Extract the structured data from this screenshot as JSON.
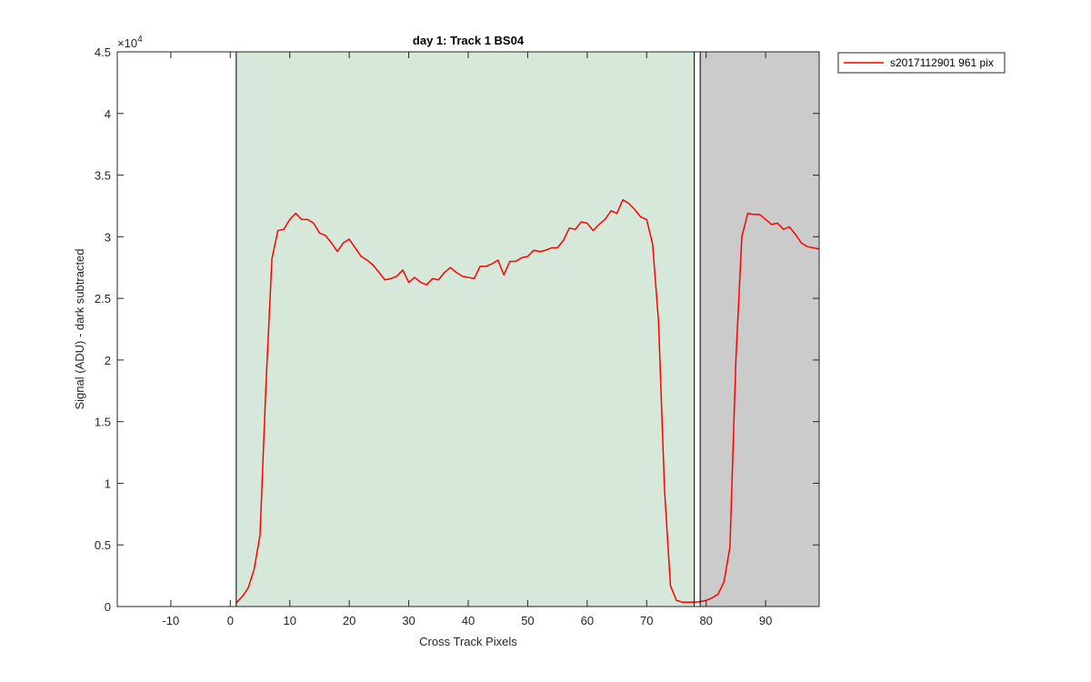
{
  "chart_data": {
    "type": "line",
    "title": "day 1: Track 1  BS04",
    "xlabel": "Cross Track Pixels",
    "ylabel": "Signal (ADU) - dark subtracted",
    "y_exponent_label": "×10",
    "y_exponent_power": "4",
    "xlim": [
      -19,
      99
    ],
    "ylim": [
      0,
      4.5
    ],
    "xticks": [
      -10,
      0,
      10,
      20,
      30,
      40,
      50,
      60,
      70,
      80,
      90
    ],
    "xtick_labels": [
      "-10",
      "0",
      "10",
      "20",
      "30",
      "40",
      "50",
      "60",
      "70",
      "80",
      "90"
    ],
    "yticks": [
      0,
      0.5,
      1,
      1.5,
      2,
      2.5,
      3,
      3.5,
      4,
      4.5
    ],
    "ytick_labels": [
      "0",
      "0.5",
      "1",
      "1.5",
      "2",
      "2.5",
      "3",
      "3.5",
      "4",
      "4.5"
    ],
    "grid": false,
    "legend_position": "outside-top-right",
    "shaded_regions": [
      {
        "x_start": 1,
        "x_end": 78,
        "color": "#d5e8d9"
      },
      {
        "x_start": 79,
        "x_end": 99,
        "color": "#cbcbcb"
      }
    ],
    "series": [
      {
        "name": "s2017112901 961 pix",
        "color": "#ff0000",
        "x": [
          1,
          2,
          3,
          4,
          5,
          6,
          7,
          8,
          9,
          10,
          11,
          12,
          13,
          14,
          15,
          16,
          17,
          18,
          19,
          20,
          21,
          22,
          23,
          24,
          25,
          26,
          27,
          28,
          29,
          30,
          31,
          32,
          33,
          34,
          35,
          36,
          37,
          38,
          39,
          40,
          41,
          42,
          43,
          44,
          45,
          46,
          47,
          48,
          49,
          50,
          51,
          52,
          53,
          54,
          55,
          56,
          57,
          58,
          59,
          60,
          61,
          62,
          63,
          64,
          65,
          66,
          67,
          68,
          69,
          70,
          71,
          72,
          73,
          74,
          75,
          76,
          77,
          78,
          79,
          80,
          81,
          82,
          83,
          84,
          85,
          86,
          87,
          88,
          89,
          90,
          91,
          92,
          93,
          94,
          95,
          96,
          97,
          98,
          99
        ],
        "y": [
          0.03,
          0.08,
          0.15,
          0.3,
          0.58,
          1.8,
          2.82,
          3.05,
          3.06,
          3.14,
          3.19,
          3.14,
          3.14,
          3.11,
          3.03,
          3.01,
          2.95,
          2.88,
          2.95,
          2.98,
          2.91,
          2.84,
          2.81,
          2.77,
          2.71,
          2.65,
          2.66,
          2.68,
          2.73,
          2.63,
          2.67,
          2.63,
          2.61,
          2.66,
          2.65,
          2.71,
          2.75,
          2.71,
          2.68,
          2.67,
          2.66,
          2.76,
          2.76,
          2.78,
          2.81,
          2.69,
          2.8,
          2.8,
          2.83,
          2.84,
          2.89,
          2.88,
          2.89,
          2.91,
          2.91,
          2.97,
          3.07,
          3.06,
          3.12,
          3.11,
          3.05,
          3.1,
          3.14,
          3.21,
          3.19,
          3.3,
          3.27,
          3.22,
          3.16,
          3.14,
          2.94,
          2.31,
          0.95,
          0.17,
          0.05,
          0.035,
          0.035,
          0.035,
          0.04,
          0.05,
          0.07,
          0.1,
          0.2,
          0.48,
          2.0,
          3.0,
          3.19,
          3.18,
          3.18,
          3.14,
          3.1,
          3.11,
          3.06,
          3.08,
          3.02,
          2.95,
          2.92,
          2.91,
          2.9
        ]
      }
    ]
  }
}
